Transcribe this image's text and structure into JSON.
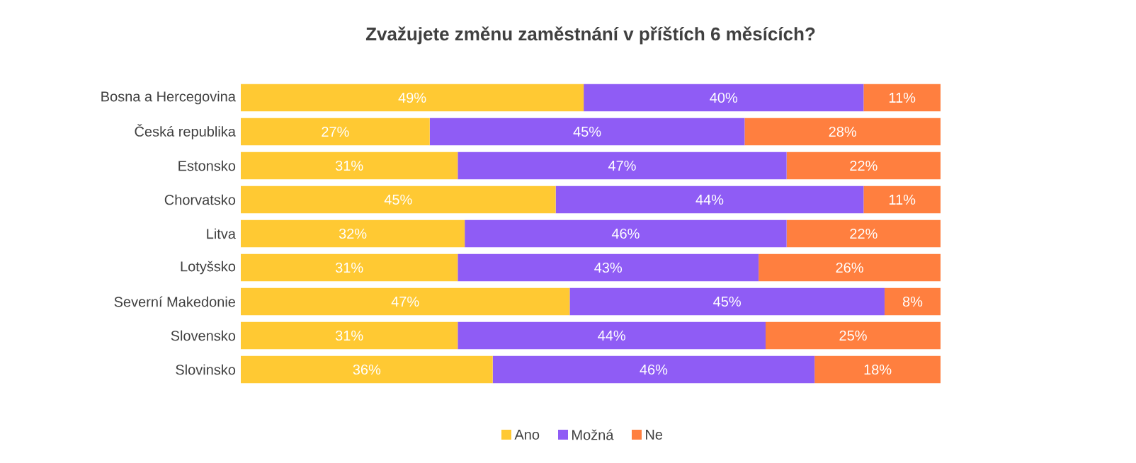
{
  "chart_data": {
    "type": "bar",
    "orientation": "horizontal",
    "stacked": true,
    "title": "Zvažujete změnu zaměstnání v příštích 6 měsících?",
    "categories": [
      "Bosna a Hercegovina",
      "Česká republika",
      "Estonsko",
      "Chorvatsko",
      "Litva",
      "Lotyšsko",
      "Severní Makedonie",
      "Slovensko",
      "Slovinsko"
    ],
    "series": [
      {
        "name": "Ano",
        "color": "#ffc933",
        "values": [
          49,
          27,
          31,
          45,
          32,
          31,
          47,
          31,
          36
        ],
        "value_labels": [
          "49%",
          "27%",
          "31%",
          "45%",
          "32%",
          "31%",
          "47%",
          "31%",
          "36%"
        ]
      },
      {
        "name": "Možná",
        "color": "#8f5cf5",
        "values": [
          40,
          45,
          47,
          44,
          46,
          43,
          45,
          44,
          46
        ],
        "value_labels": [
          "40%",
          "45%",
          "47%",
          "44%",
          "46%",
          "43%",
          "45%",
          "44%",
          "46%"
        ]
      },
      {
        "name": "Ne",
        "color": "#ff7f3f",
        "values": [
          11,
          28,
          22,
          11,
          22,
          26,
          8,
          25,
          18
        ],
        "value_labels": [
          "11%",
          "28%",
          "22%",
          "11%",
          "22%",
          "26%",
          "8%",
          "25%",
          "18%"
        ]
      }
    ],
    "legend": "bottom"
  }
}
